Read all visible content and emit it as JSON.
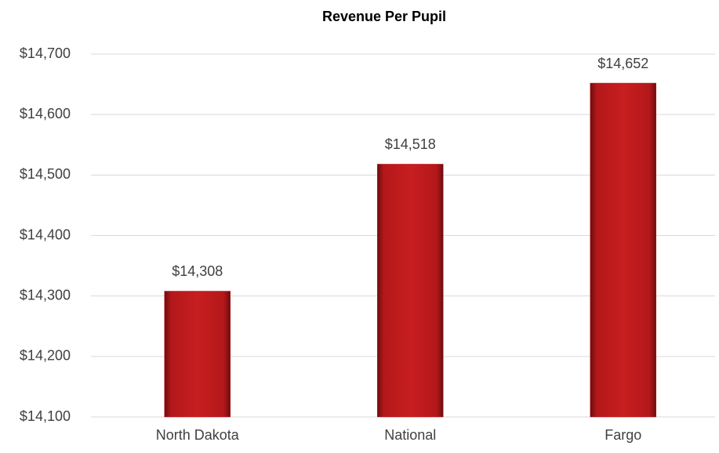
{
  "chart_data": {
    "type": "bar",
    "title": "Revenue Per Pupil",
    "categories": [
      "North Dakota",
      "National",
      "Fargo"
    ],
    "values": [
      14308,
      14518,
      14652
    ],
    "value_labels": [
      "$14,308",
      "$14,518",
      "$14,652"
    ],
    "color": "#c0191b",
    "ylim": [
      14100,
      14700
    ],
    "yticks": [
      {
        "value": 14100,
        "label": "$14,100"
      },
      {
        "value": 14200,
        "label": "$14,200"
      },
      {
        "value": 14300,
        "label": "$14,300"
      },
      {
        "value": 14400,
        "label": "$14,400"
      },
      {
        "value": 14500,
        "label": "$14,500"
      },
      {
        "value": 14600,
        "label": "$14,600"
      },
      {
        "value": 14700,
        "label": "$14,700"
      }
    ],
    "grid": true
  }
}
